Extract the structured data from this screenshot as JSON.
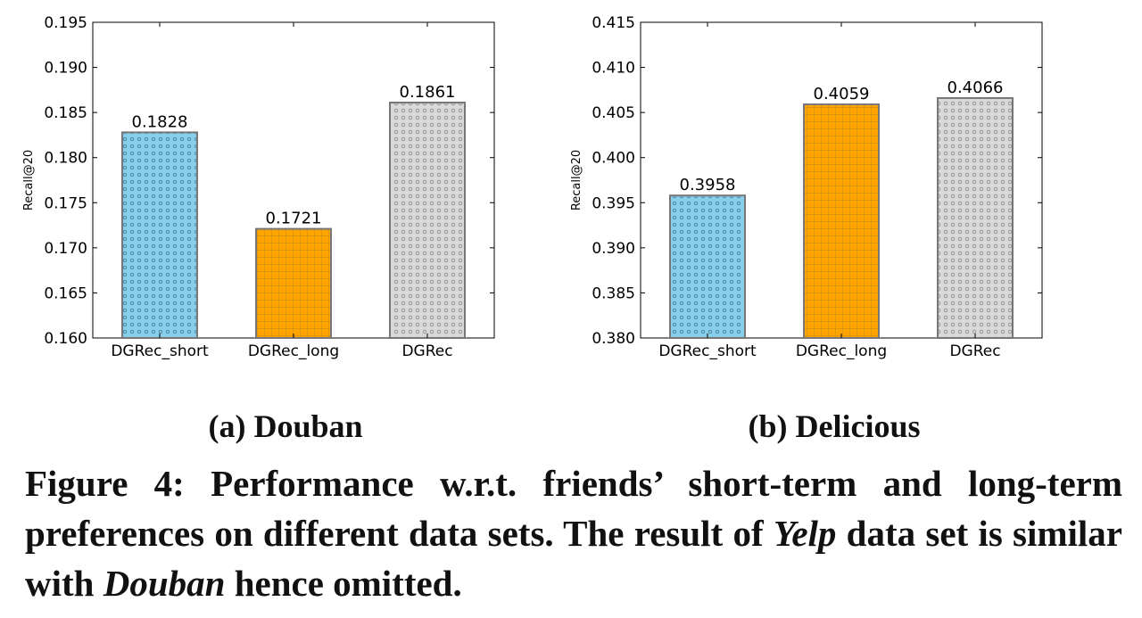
{
  "chart_data": [
    {
      "type": "bar",
      "categories": [
        "DGRec_short",
        "DGRec_long",
        "DGRec"
      ],
      "values": [
        0.1828,
        0.1721,
        0.1861
      ],
      "value_labels": [
        "0.1828",
        "0.1721",
        "0.1861"
      ],
      "ylabel": "Recall@20",
      "ylim": [
        0.16,
        0.195
      ],
      "yticks": [
        "0.160",
        "0.165",
        "0.170",
        "0.175",
        "0.180",
        "0.185",
        "0.190",
        "0.195"
      ],
      "caption": "(a) Douban",
      "colors": [
        "#87ceeb",
        "#ffa500",
        "#d9d9d9"
      ],
      "patterns": [
        "dots",
        "grid",
        "circles"
      ]
    },
    {
      "type": "bar",
      "categories": [
        "DGRec_short",
        "DGRec_long",
        "DGRec"
      ],
      "values": [
        0.3958,
        0.4059,
        0.4066
      ],
      "value_labels": [
        "0.3958",
        "0.4059",
        "0.4066"
      ],
      "ylabel": "Recall@20",
      "ylim": [
        0.38,
        0.415
      ],
      "yticks": [
        "0.380",
        "0.385",
        "0.390",
        "0.395",
        "0.400",
        "0.405",
        "0.410",
        "0.415"
      ],
      "caption": "(b) Delicious",
      "colors": [
        "#87ceeb",
        "#ffa500",
        "#d9d9d9"
      ],
      "patterns": [
        "dots",
        "grid",
        "circles"
      ]
    }
  ],
  "caption": {
    "part1": "Figure 4: Performance w.r.t. friends’ short-term and long-term preferences on different data sets. The result of ",
    "em1": "Yelp",
    "part2": " data set is similar with ",
    "em2": "Douban",
    "part3": " hence omitted."
  }
}
